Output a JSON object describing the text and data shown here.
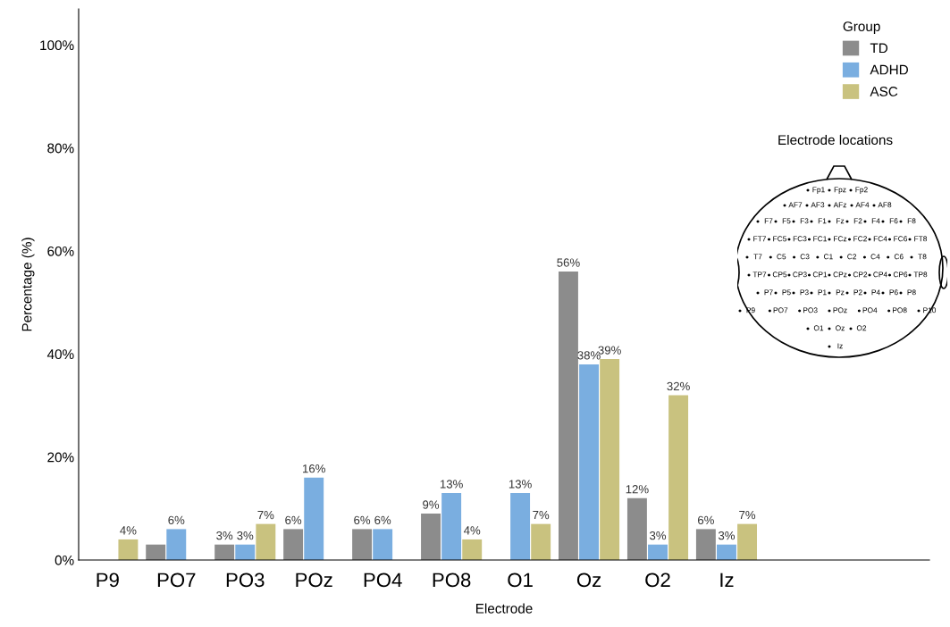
{
  "chart_data": {
    "type": "bar",
    "xlabel": "Electrode",
    "ylabel": "Percentage (%)",
    "legend_title": "Group",
    "legend": "top right",
    "grid": false,
    "categories": [
      "P9",
      "PO7",
      "PO3",
      "POz",
      "PO4",
      "PO8",
      "O1",
      "Oz",
      "O2",
      "Iz"
    ],
    "ylim": [
      0,
      107
    ],
    "yticks": [
      {
        "value": 0,
        "label": "0%"
      },
      {
        "value": 20,
        "label": "20%"
      },
      {
        "value": 40,
        "label": "40%"
      },
      {
        "value": 60,
        "label": "60%"
      },
      {
        "value": 80,
        "label": "80%"
      },
      {
        "value": 100,
        "label": "100%"
      }
    ],
    "series": [
      {
        "name": "TD",
        "color": "#8c8c8c",
        "values": [
          0,
          3,
          3,
          6,
          6,
          9,
          0,
          56,
          12,
          6
        ],
        "value_labels": [
          null,
          null,
          "3%",
          "6%",
          "6%",
          "9%",
          null,
          "56%",
          "12%",
          "6%"
        ]
      },
      {
        "name": "ADHD",
        "color": "#7aaee0",
        "values": [
          0,
          6,
          3,
          16,
          6,
          13,
          13,
          38,
          3,
          3
        ],
        "value_labels": [
          null,
          "6%",
          "3%",
          "16%",
          "6%",
          "13%",
          "13%",
          "38%",
          "3%",
          "3%"
        ]
      },
      {
        "name": "ASC",
        "color": "#c9c27f",
        "values": [
          4,
          0,
          7,
          0,
          0,
          4,
          7,
          39,
          32,
          7
        ],
        "value_labels": [
          "4%",
          null,
          "7%",
          null,
          null,
          "4%",
          "7%",
          "39%",
          "32%",
          "7%"
        ]
      }
    ],
    "annotations": [
      "Electrode locations",
      "Fp1",
      "Fpz",
      "Fp2",
      "AF7",
      "AF3",
      "AFz",
      "AF4",
      "AF8",
      "F7",
      "F5",
      "F3",
      "F1",
      "Fz",
      "F2",
      "F4",
      "F6",
      "F8",
      "FT7",
      "FC5",
      "FC3",
      "FC1",
      "FCz",
      "FC2",
      "FC4",
      "FC6",
      "FT8",
      "T7",
      "C5",
      "C3",
      "C1",
      "C2",
      "C4",
      "C6",
      "T8",
      "TP7",
      "CP5",
      "CP3",
      "CP1",
      "CPz",
      "CP2",
      "CP4",
      "CP6",
      "TP8",
      "P7",
      "P5",
      "P3",
      "P1",
      "Pz",
      "P2",
      "P4",
      "P6",
      "P8",
      "P9",
      "PO7",
      "PO3",
      "POz",
      "PO4",
      "PO8",
      "P10",
      "O1",
      "Oz",
      "O2",
      "Iz"
    ]
  }
}
